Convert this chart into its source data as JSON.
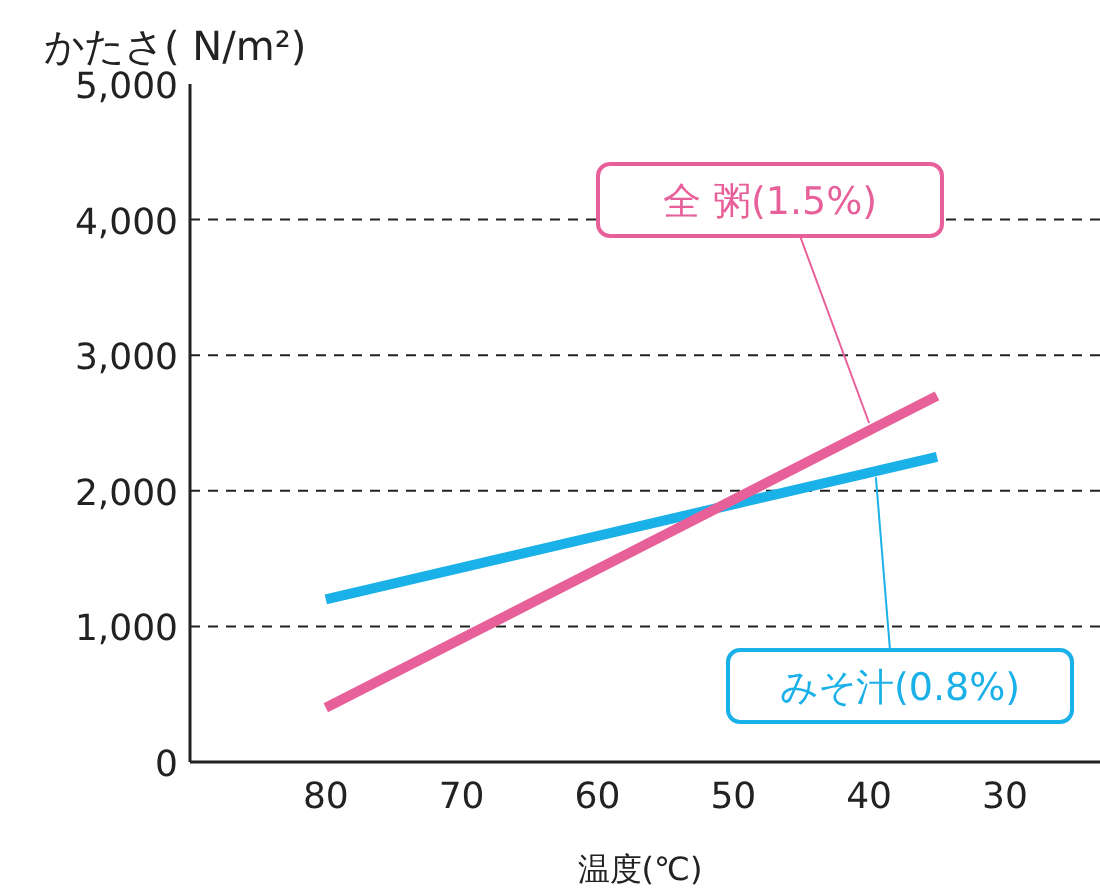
{
  "chart_data": {
    "type": "line",
    "ylabel": "かたさ( N/m²)",
    "xlabel": "温度(℃)",
    "xlim": [
      90,
      23
    ],
    "xticks": [
      80,
      70,
      60,
      50,
      40,
      30
    ],
    "ylim": [
      0,
      5000
    ],
    "yticks": [
      {
        "value": 0,
        "label": "0"
      },
      {
        "value": 1000,
        "label": "1,000"
      },
      {
        "value": 2000,
        "label": "2,000"
      },
      {
        "value": 3000,
        "label": "3,000"
      },
      {
        "value": 4000,
        "label": "4,000"
      },
      {
        "value": 5000,
        "label": "5,000"
      }
    ],
    "grid": "y",
    "line_style": "solid",
    "marker": "none",
    "series": [
      {
        "color": "#1ab0e8",
        "values": [
          1200,
          2250
        ]
      },
      {
        "color": "#e8609a",
        "values": [
          400,
          2700
        ]
      }
    ],
    "x": [
      80,
      35
    ],
    "annotations": [
      {
        "text": "全 粥(1.5%)",
        "x": 40,
        "y": 2500
      },
      {
        "text": "みそ汁(0.8%)",
        "x": 39.5,
        "y": 2100
      }
    ]
  }
}
